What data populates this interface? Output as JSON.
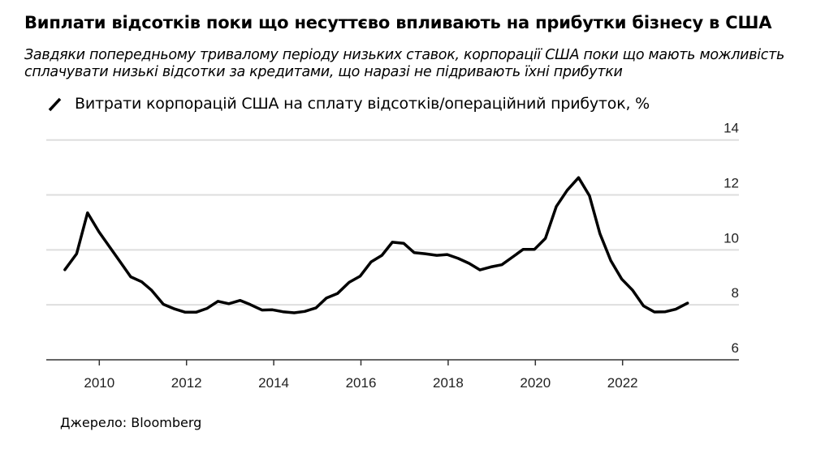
{
  "title": "Виплати відсотків поки що несуттєво впливають на прибутки бізнесу в США",
  "subtitle": "Завдяки попередньому тривалому періоду низьких ставок, корпорації США поки що мають можливість сплачувати низькі відсотки за кредитами, що наразі не підривають їхні прибутки",
  "source": "Джерело: Bloomberg",
  "chart_data": {
    "type": "line",
    "title": "Виплати відсотків поки що несуттєво впливають на прибутки бізнесу в США",
    "legend_position": "top-left",
    "grid": true,
    "y_axis_side": "right",
    "xlim": [
      2008.7,
      2024.9
    ],
    "ylim": [
      6,
      14
    ],
    "x_ticks": [
      "2010",
      "2012",
      "2014",
      "2016",
      "2018",
      "2020",
      "2022"
    ],
    "y_ticks": [
      "6",
      "8",
      "10",
      "12",
      "14"
    ],
    "series": [
      {
        "name": "Витрати корпорацій США на сплату відсотків/операційний прибуток, %",
        "color": "#000000",
        "x": [
          2009.21,
          2009.48,
          2009.73,
          2009.99,
          2010.24,
          2010.48,
          2010.72,
          2010.97,
          2011.2,
          2011.47,
          2011.71,
          2011.97,
          2012.22,
          2012.47,
          2012.72,
          2012.97,
          2013.23,
          2013.46,
          2013.73,
          2013.97,
          2014.21,
          2014.47,
          2014.71,
          2014.97,
          2015.21,
          2015.46,
          2015.73,
          2015.98,
          2016.23,
          2016.48,
          2016.72,
          2016.98,
          2017.22,
          2017.47,
          2017.74,
          2017.98,
          2018.23,
          2018.48,
          2018.73,
          2018.98,
          2019.23,
          2019.47,
          2019.72,
          2019.98,
          2020.23,
          2020.48,
          2020.73,
          2020.99,
          2021.24,
          2021.48,
          2021.73,
          2021.98,
          2022.23,
          2022.48,
          2022.73,
          2022.98,
          2023.22,
          2023.49
        ],
        "y": [
          9.28,
          9.86,
          11.35,
          10.66,
          10.1,
          9.56,
          9.02,
          8.84,
          8.53,
          8.02,
          7.86,
          7.73,
          7.73,
          7.87,
          8.13,
          8.04,
          8.16,
          8.01,
          7.81,
          7.82,
          7.75,
          7.71,
          7.76,
          7.89,
          8.25,
          8.41,
          8.82,
          9.04,
          9.56,
          9.8,
          10.28,
          10.24,
          9.9,
          9.86,
          9.8,
          9.83,
          9.69,
          9.51,
          9.27,
          9.38,
          9.46,
          9.73,
          10.02,
          10.02,
          10.42,
          11.58,
          12.17,
          12.63,
          11.97,
          10.59,
          9.61,
          8.94,
          8.53,
          7.96,
          7.74,
          7.75,
          7.84,
          8.06
        ]
      }
    ]
  }
}
